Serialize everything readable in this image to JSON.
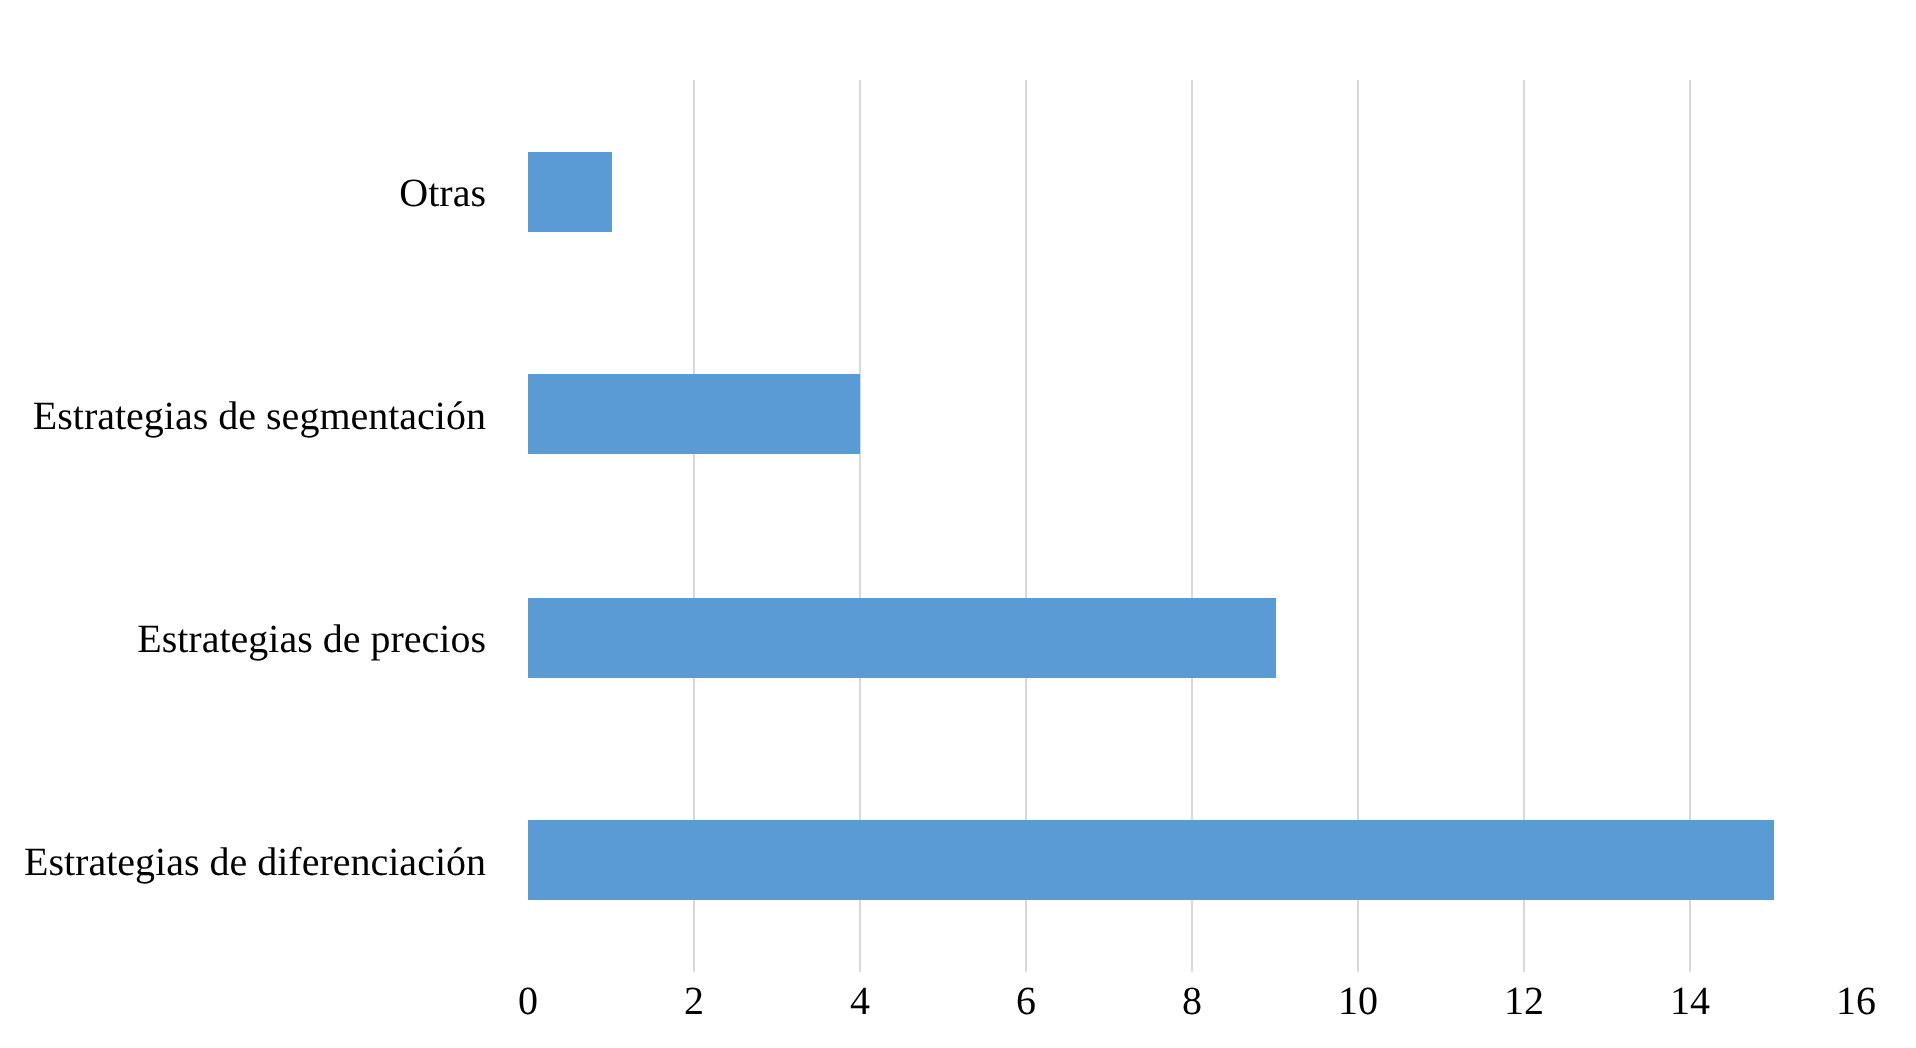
{
  "chart_data": {
    "type": "bar",
    "orientation": "horizontal",
    "categories": [
      "Otras",
      "Estrategias de segmentación",
      "Estrategias de precios",
      "Estrategias de diferenciación"
    ],
    "values": [
      1,
      4,
      9,
      15
    ],
    "color": "#5b9bd5",
    "xlim": [
      0,
      16
    ],
    "xticks": [
      0,
      2,
      4,
      6,
      8,
      10,
      12,
      14,
      16
    ],
    "grid": "x",
    "legend": false
  }
}
